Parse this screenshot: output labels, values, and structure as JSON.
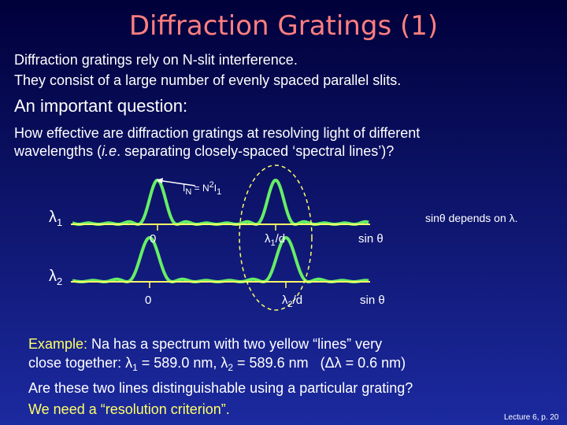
{
  "title": "Diffraction Gratings (1)",
  "intro": [
    "Diffraction gratings rely on N-slit interference.",
    "They consist of a large number of evenly spaced parallel slits."
  ],
  "heading": "An important question:",
  "question": {
    "line1": "How effective are diffraction gratings at resolving light of different",
    "line2": [
      "wavelengths (",
      "i.e",
      ". separating closely-spaced ‘spectral lines’)?"
    ]
  },
  "diagram": {
    "peak_label": [
      "I",
      "N",
      " = N",
      "2",
      "I",
      "1"
    ],
    "note": "sinθ depends on λ.",
    "trace1": {
      "lambda": [
        "λ",
        "1"
      ],
      "zero": "0",
      "peak": [
        "λ",
        "1",
        "/d"
      ],
      "axis": "sin θ"
    },
    "trace2": {
      "lambda": [
        "λ",
        "2"
      ],
      "zero": "0",
      "peak": [
        "λ",
        "2",
        "/d"
      ],
      "axis": "sin θ"
    }
  },
  "example": {
    "label": "Example:",
    "line1": " Na has a spectrum with two yellow “lines” very",
    "line2": [
      "close together: ",
      "λ",
      "1",
      " = 589.0 nm, ",
      "λ",
      "2",
      " = 589.6 nm   (",
      "Δλ",
      " = 0.6 nm)"
    ]
  },
  "closing": [
    "Are these two lines distinguishable using a particular grating?",
    "We need a “resolution criterion”."
  ],
  "footer": "Lecture 6, p. 20"
}
